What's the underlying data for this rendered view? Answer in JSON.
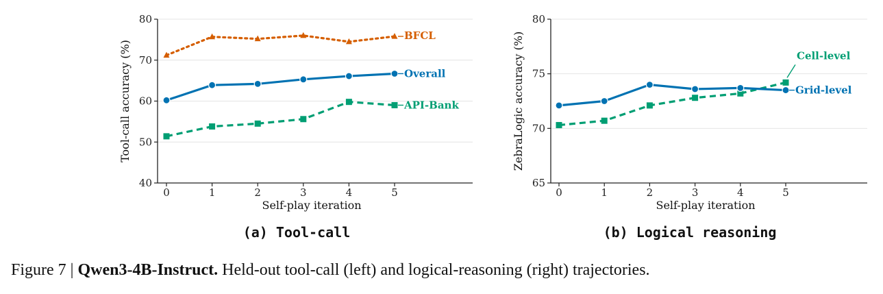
{
  "colors": {
    "orange": "#d55e00",
    "blue": "#0072b2",
    "green": "#009e73",
    "grid": "#e4e4e4",
    "axis": "#222222"
  },
  "chart_data": [
    {
      "type": "line",
      "caption": "(a) Tool-call",
      "xlabel": "Self-play iteration",
      "ylabel": "Tool-call accuracy (%)",
      "x": [
        0,
        1,
        2,
        3,
        4,
        5
      ],
      "xticks": [
        "0",
        "1",
        "2",
        "3",
        "4",
        "5"
      ],
      "ylim": [
        40,
        80
      ],
      "yticks": [
        "40",
        "50",
        "60",
        "70",
        "80"
      ],
      "grid": "horizontal",
      "series": [
        {
          "name": "BFCL",
          "values": [
            71.2,
            75.7,
            75.2,
            76.0,
            74.5,
            75.8
          ],
          "color": "#d55e00",
          "line": "dotted",
          "marker": "triangle"
        },
        {
          "name": "Overall",
          "values": [
            60.2,
            63.9,
            64.2,
            65.3,
            66.1,
            66.7
          ],
          "color": "#0072b2",
          "line": "solid",
          "marker": "circle"
        },
        {
          "name": "API-Bank",
          "values": [
            51.4,
            53.8,
            54.5,
            55.6,
            59.8,
            59.0
          ],
          "color": "#009e73",
          "line": "dashed",
          "marker": "square"
        }
      ]
    },
    {
      "type": "line",
      "caption": "(b) Logical reasoning",
      "xlabel": "Self-play iteration",
      "ylabel": "ZebraLogic accuracy (%)",
      "x": [
        0,
        1,
        2,
        3,
        4,
        5
      ],
      "xticks": [
        "0",
        "1",
        "2",
        "3",
        "4",
        "5"
      ],
      "ylim": [
        65,
        80
      ],
      "yticks": [
        "65",
        "70",
        "75",
        "80"
      ],
      "grid": "horizontal",
      "series": [
        {
          "name": "Cell-level",
          "values": [
            70.3,
            70.7,
            72.1,
            72.8,
            73.2,
            74.2
          ],
          "color": "#009e73",
          "line": "dashed",
          "marker": "square"
        },
        {
          "name": "Grid-level",
          "values": [
            72.1,
            72.5,
            74.0,
            73.6,
            73.7,
            73.5
          ],
          "color": "#0072b2",
          "line": "solid",
          "marker": "circle"
        }
      ]
    }
  ],
  "caption": {
    "prefix": "Figure 7 | ",
    "bold": "Qwen3-4B-Instruct.",
    "rest": " Held-out tool-call (left) and logical-reasoning (right) trajectories."
  }
}
